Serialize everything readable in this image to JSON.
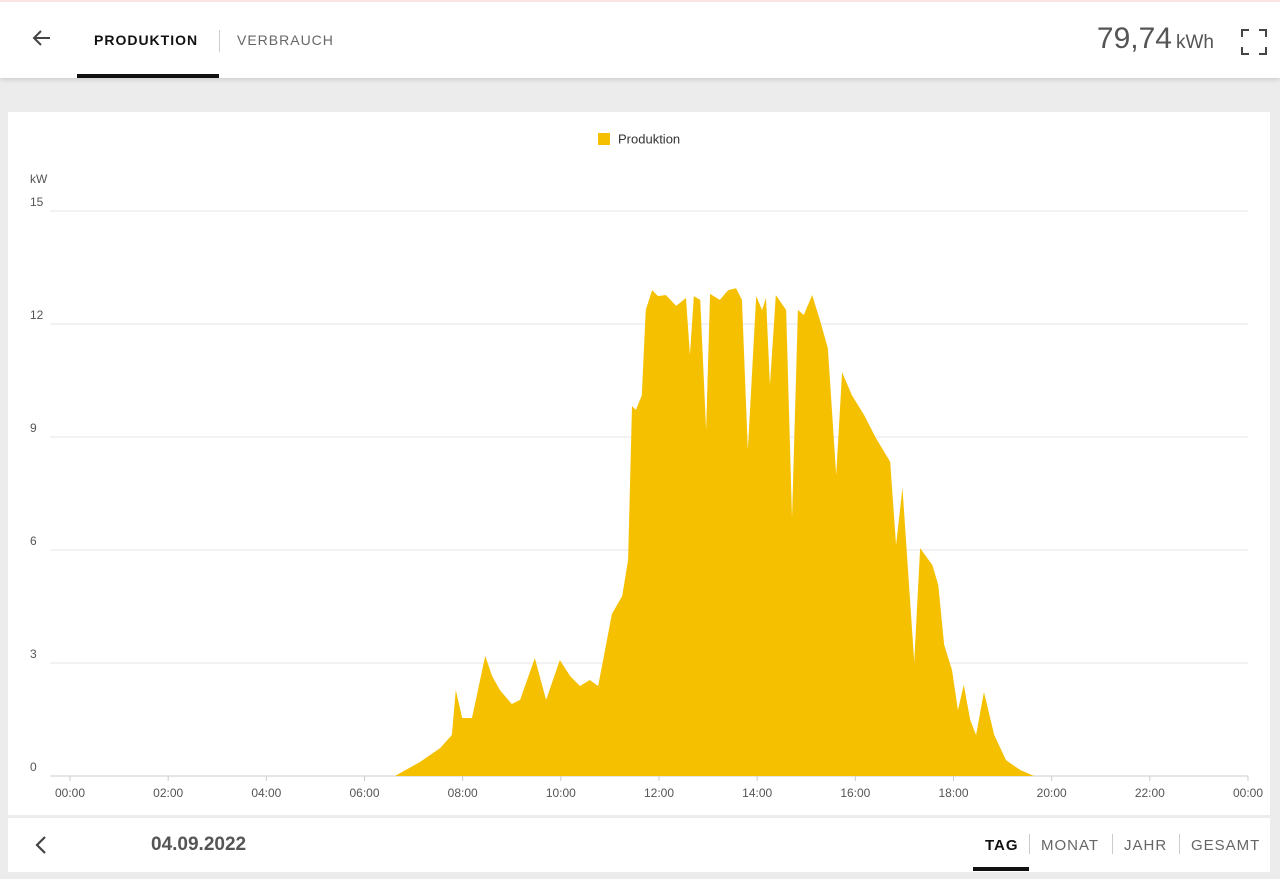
{
  "header": {
    "tabs": [
      "PRODUKTION",
      "VERBRAUCH"
    ],
    "total": "79,74",
    "unit": "kWh"
  },
  "chart_data": {
    "type": "area",
    "y_label": "kW",
    "x": [
      6.62,
      7.13,
      7.54,
      7.78,
      7.86,
      7.99,
      8.19,
      8.46,
      8.6,
      8.76,
      9.0,
      9.17,
      9.47,
      9.7,
      9.98,
      10.19,
      10.39,
      10.59,
      10.76,
      10.9,
      11.04,
      11.25,
      11.37,
      11.45,
      11.53,
      11.65,
      11.73,
      11.86,
      11.98,
      12.14,
      12.35,
      12.55,
      12.63,
      12.71,
      12.84,
      12.96,
      13.04,
      13.24,
      13.41,
      13.57,
      13.69,
      13.81,
      13.98,
      14.1,
      14.18,
      14.26,
      14.38,
      14.59,
      14.71,
      14.83,
      14.95,
      15.12,
      15.28,
      15.44,
      15.61,
      15.73,
      15.93,
      16.18,
      16.42,
      16.71,
      16.83,
      16.96,
      17.2,
      17.32,
      17.57,
      17.69,
      17.81,
      17.97,
      18.09,
      18.21,
      18.34,
      18.46,
      18.62,
      18.83,
      19.07,
      19.36,
      19.64
    ],
    "series": [
      {
        "name": "Produktion",
        "color": "#f5c000",
        "values": [
          0,
          0.37,
          0.74,
          1.09,
          2.28,
          1.54,
          1.54,
          3.19,
          2.65,
          2.28,
          1.91,
          2.02,
          3.13,
          2.02,
          3.08,
          2.65,
          2.39,
          2.55,
          2.39,
          3.34,
          4.3,
          4.78,
          5.73,
          9.82,
          9.72,
          10.11,
          12.37,
          12.9,
          12.74,
          12.77,
          12.48,
          12.69,
          11.18,
          12.74,
          12.64,
          9.19,
          12.8,
          12.64,
          12.9,
          12.95,
          12.64,
          8.65,
          12.74,
          12.37,
          12.69,
          10.38,
          12.77,
          12.37,
          6.85,
          12.37,
          12.24,
          12.77,
          12.1,
          11.36,
          7.99,
          10.72,
          10.11,
          9.58,
          8.97,
          8.34,
          6.13,
          7.65,
          3.03,
          6.05,
          5.6,
          5.07,
          3.48,
          2.81,
          1.75,
          2.42,
          1.49,
          1.09,
          2.23,
          1.09,
          0.42,
          0.16,
          0
        ]
      }
    ],
    "xlim": [
      0,
      24
    ],
    "xticks": [
      {
        "value": 0,
        "label": "00:00"
      },
      {
        "value": 2,
        "label": "02:00"
      },
      {
        "value": 4,
        "label": "04:00"
      },
      {
        "value": 6,
        "label": "06:00"
      },
      {
        "value": 8,
        "label": "08:00"
      },
      {
        "value": 10,
        "label": "10:00"
      },
      {
        "value": 12,
        "label": "12:00"
      },
      {
        "value": 14,
        "label": "14:00"
      },
      {
        "value": 16,
        "label": "16:00"
      },
      {
        "value": 18,
        "label": "18:00"
      },
      {
        "value": 20,
        "label": "20:00"
      },
      {
        "value": 22,
        "label": "22:00"
      },
      {
        "value": 24,
        "label": "00:00"
      }
    ],
    "ylim": [
      0,
      15
    ],
    "yticks": [
      0,
      3,
      6,
      9,
      12,
      15
    ],
    "grid": true,
    "legend": "top"
  },
  "footer": {
    "date": "04.09.2022",
    "periods": [
      "TAG",
      "MONAT",
      "JAHR",
      "GESAMT"
    ]
  }
}
